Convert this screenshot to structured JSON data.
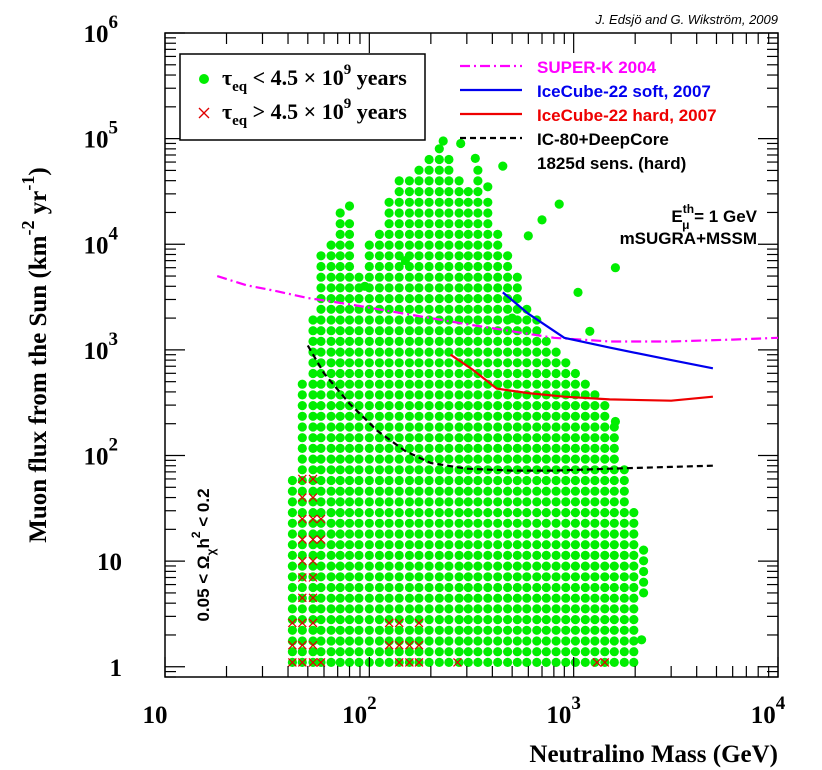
{
  "chart_data": {
    "type": "scatter",
    "credit": "J. Edsjö and G. Wikström, 2009",
    "xlabel": "Neutralino Mass (GeV)",
    "ylabel": "Muon flux from the Sun (km",
    "ylabel_exp1": "-2",
    "ylabel_mid": " yr",
    "ylabel_exp2": "-1",
    "ylabel_end": ")",
    "x_scale": "log",
    "y_scale": "log",
    "xlim": [
      10,
      10000
    ],
    "ylim": [
      0.8,
      1000000
    ],
    "x_ticks": [
      {
        "value": 10,
        "base": "10",
        "exp": ""
      },
      {
        "value": 100,
        "base": "10",
        "exp": "2"
      },
      {
        "value": 1000,
        "base": "10",
        "exp": "3"
      },
      {
        "value": 10000,
        "base": "10",
        "exp": "4"
      }
    ],
    "y_ticks": [
      {
        "value": 1,
        "base": "1",
        "exp": ""
      },
      {
        "value": 10,
        "base": "10",
        "exp": ""
      },
      {
        "value": 100,
        "base": "10",
        "exp": "2"
      },
      {
        "value": 1000,
        "base": "10",
        "exp": "3"
      },
      {
        "value": 10000,
        "base": "10",
        "exp": "4"
      },
      {
        "value": 100000,
        "base": "10",
        "exp": "5"
      },
      {
        "value": 1000000,
        "base": "10",
        "exp": "6"
      }
    ],
    "legend_box": {
      "position": "top-left",
      "entries": [
        {
          "name": "green",
          "symbol": "dot",
          "color": "#00ee00",
          "tau": "τ",
          "sub": "eq",
          "rel": " < 4.5 × 10",
          "exp": "9",
          "unit": " years"
        },
        {
          "name": "red",
          "symbol": "cross",
          "color": "#e00000",
          "tau": "τ",
          "sub": "eq",
          "rel": " > 4.5 × 10",
          "exp": "9",
          "unit": " years"
        }
      ]
    },
    "line_legend": {
      "position": "top-right",
      "entries": [
        {
          "label": "SUPER-K 2004",
          "color": "#ff00ff",
          "dash": "dashdot"
        },
        {
          "label": "IceCube-22 soft, 2007",
          "color": "#0000ee",
          "dash": "solid"
        },
        {
          "label": "IceCube-22 hard, 2007",
          "color": "#ee0000",
          "dash": "solid"
        },
        {
          "label": "IC-80+DeepCore",
          "label2": "1825d sens. (hard)",
          "color": "#000000",
          "dash": "dashed"
        }
      ]
    },
    "annotation_energy": {
      "E": "E",
      "sup": "th",
      "sub": "μ",
      "rest": " = 1 GeV"
    },
    "annotation_model": "mSUGRA+MSSM",
    "relic_label": {
      "pre": "0.05 < Ω",
      "sub": "χ",
      "mid": "h",
      "sup": "2",
      "post": " < 0.2"
    },
    "series": [
      {
        "name": "SUPER-K 2004",
        "color": "#ff00ff",
        "dash": "dashdot",
        "points": [
          [
            18,
            5000
          ],
          [
            25,
            4100
          ],
          [
            35,
            3600
          ],
          [
            50,
            3100
          ],
          [
            80,
            2700
          ],
          [
            130,
            2300
          ],
          [
            200,
            2000
          ],
          [
            300,
            1750
          ],
          [
            500,
            1500
          ],
          [
            800,
            1300
          ],
          [
            1500,
            1200
          ],
          [
            3000,
            1200
          ],
          [
            6000,
            1250
          ],
          [
            10000,
            1300
          ]
        ]
      },
      {
        "name": "IceCube-22 soft, 2007",
        "color": "#0000ee",
        "dash": "solid",
        "points": [
          [
            450,
            3500
          ],
          [
            600,
            2200
          ],
          [
            900,
            1300
          ],
          [
            1500,
            1050
          ],
          [
            3000,
            800
          ],
          [
            4800,
            670
          ]
        ]
      },
      {
        "name": "IceCube-22 hard, 2007",
        "color": "#ee0000",
        "dash": "solid",
        "points": [
          [
            250,
            900
          ],
          [
            320,
            650
          ],
          [
            420,
            430
          ],
          [
            600,
            390
          ],
          [
            900,
            360
          ],
          [
            1500,
            340
          ],
          [
            3000,
            330
          ],
          [
            4800,
            360
          ]
        ]
      },
      {
        "name": "IC-80+DeepCore 1825d sens. (hard)",
        "color": "#000000",
        "dash": "dashed",
        "points": [
          [
            50,
            1100
          ],
          [
            60,
            600
          ],
          [
            80,
            310
          ],
          [
            110,
            170
          ],
          [
            150,
            110
          ],
          [
            200,
            85
          ],
          [
            300,
            75
          ],
          [
            500,
            72
          ],
          [
            800,
            72
          ],
          [
            1500,
            75
          ],
          [
            3000,
            78
          ],
          [
            4800,
            80
          ]
        ]
      }
    ],
    "scatter_green_columns": [
      {
        "mass": 42,
        "ymin": 1.1,
        "ymax": 70
      },
      {
        "mass": 47,
        "ymin": 1.1,
        "ymax": 500
      },
      {
        "mass": 53,
        "ymin": 1.1,
        "ymax": 2000
      },
      {
        "mass": 58,
        "ymin": 1.1,
        "ymax": 8000
      },
      {
        "mass": 65,
        "ymin": 1.1,
        "ymax": 10000
      },
      {
        "mass": 72,
        "ymin": 1.1,
        "ymax": 22000
      },
      {
        "mass": 80,
        "ymin": 1.1,
        "ymax": 18000
      },
      {
        "mass": 89,
        "ymin": 1.1,
        "ymax": 6000
      },
      {
        "mass": 100,
        "ymin": 1.1,
        "ymax": 10000
      },
      {
        "mass": 112,
        "ymin": 1.1,
        "ymax": 14000
      },
      {
        "mass": 125,
        "ymin": 1.1,
        "ymax": 25000
      },
      {
        "mass": 140,
        "ymin": 1.1,
        "ymax": 40000
      },
      {
        "mass": 157,
        "ymin": 1.1,
        "ymax": 50000
      },
      {
        "mass": 175,
        "ymin": 1.1,
        "ymax": 60000
      },
      {
        "mass": 196,
        "ymin": 1.1,
        "ymax": 70000
      },
      {
        "mass": 220,
        "ymin": 1.1,
        "ymax": 95000
      },
      {
        "mass": 245,
        "ymin": 1.1,
        "ymax": 70000
      },
      {
        "mass": 275,
        "ymin": 1.1,
        "ymax": 50000
      },
      {
        "mass": 305,
        "ymin": 1.1,
        "ymax": 35000
      },
      {
        "mass": 340,
        "ymin": 1.1,
        "ymax": 60000
      },
      {
        "mass": 380,
        "ymin": 1.1,
        "ymax": 30000
      },
      {
        "mass": 425,
        "ymin": 1.1,
        "ymax": 15000
      },
      {
        "mass": 475,
        "ymin": 1.1,
        "ymax": 8000
      },
      {
        "mass": 530,
        "ymin": 1.1,
        "ymax": 5000
      },
      {
        "mass": 590,
        "ymin": 1.1,
        "ymax": 3000
      },
      {
        "mass": 660,
        "ymin": 1.1,
        "ymax": 2000
      },
      {
        "mass": 735,
        "ymin": 1.1,
        "ymax": 1500
      },
      {
        "mass": 820,
        "ymin": 1.1,
        "ymax": 1000
      },
      {
        "mass": 915,
        "ymin": 1.1,
        "ymax": 800
      },
      {
        "mass": 1020,
        "ymin": 1.1,
        "ymax": 700
      },
      {
        "mass": 1140,
        "ymin": 1.1,
        "ymax": 500
      },
      {
        "mass": 1270,
        "ymin": 1.1,
        "ymax": 400
      },
      {
        "mass": 1420,
        "ymin": 1.1,
        "ymax": 300
      },
      {
        "mass": 1580,
        "ymin": 1.1,
        "ymax": 200
      },
      {
        "mass": 1770,
        "ymin": 1.1,
        "ymax": 80
      },
      {
        "mass": 1970,
        "ymin": 1.1,
        "ymax": 30
      },
      {
        "mass": 2200,
        "ymin": 5,
        "ymax": 15
      }
    ],
    "scatter_green_extra": [
      [
        80,
        23000
      ],
      [
        95,
        4000
      ],
      [
        150,
        7000
      ],
      [
        230,
        95000
      ],
      [
        280,
        90000
      ],
      [
        330,
        65000
      ],
      [
        380,
        35000
      ],
      [
        450,
        55000
      ],
      [
        600,
        12000
      ],
      [
        700,
        17000
      ],
      [
        850,
        24000
      ],
      [
        1050,
        3500
      ],
      [
        1600,
        6000
      ],
      [
        1600,
        210
      ],
      [
        1200,
        1500
      ],
      [
        2150,
        1.8
      ],
      [
        500,
        2000
      ]
    ],
    "scatter_red": [
      [
        42,
        1.1
      ],
      [
        42,
        1.6
      ],
      [
        42,
        2.6
      ],
      [
        47,
        1.1
      ],
      [
        47,
        1.6
      ],
      [
        47,
        2.6
      ],
      [
        47,
        4.5
      ],
      [
        47,
        7
      ],
      [
        47,
        10
      ],
      [
        47,
        16
      ],
      [
        47,
        25
      ],
      [
        47,
        40
      ],
      [
        47,
        60
      ],
      [
        53,
        1.1
      ],
      [
        53,
        1.6
      ],
      [
        53,
        2.6
      ],
      [
        53,
        4.5
      ],
      [
        53,
        7
      ],
      [
        53,
        10
      ],
      [
        53,
        16
      ],
      [
        53,
        25
      ],
      [
        53,
        40
      ],
      [
        53,
        60
      ],
      [
        58,
        1.1
      ],
      [
        58,
        16
      ],
      [
        58,
        25
      ],
      [
        125,
        1.6
      ],
      [
        125,
        2.6
      ],
      [
        140,
        1.1
      ],
      [
        140,
        1.6
      ],
      [
        140,
        2.6
      ],
      [
        157,
        1.1
      ],
      [
        157,
        1.6
      ],
      [
        175,
        1.1
      ],
      [
        175,
        1.6
      ],
      [
        175,
        2.6
      ],
      [
        270,
        1.1
      ],
      [
        1300,
        1.1
      ],
      [
        1420,
        1.1
      ]
    ]
  }
}
